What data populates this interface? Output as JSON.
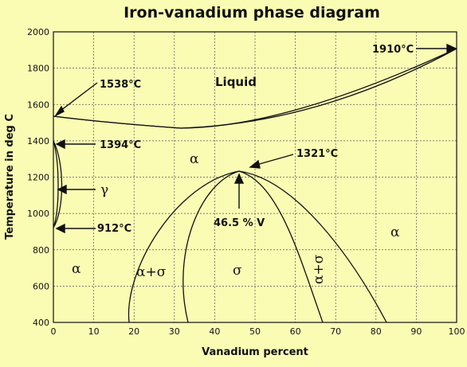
{
  "title": "Iron-vanadium phase diagram",
  "x_axis": {
    "label": "Vanadium percent",
    "min": 0,
    "max": 100,
    "ticks": [
      "0",
      "10",
      "20",
      "30",
      "40",
      "50",
      "60",
      "70",
      "80",
      "90",
      "100"
    ]
  },
  "y_axis": {
    "label": "Temperature in deg C",
    "min": 400,
    "max": 2000,
    "ticks": [
      "400",
      "600",
      "800",
      "1000",
      "1200",
      "1400",
      "1600",
      "1800",
      "2000"
    ]
  },
  "annotations": {
    "fe_melting": "1538°C",
    "v_melting": "1910°C",
    "gamma_alpha_upper": "1394°C",
    "gamma_alpha_lower": "912°C",
    "sigma_max": "1321°C",
    "sigma_composition": "46.5 % V"
  },
  "phases": {
    "liquid": "Liquid",
    "alpha_mid": "α",
    "gamma": "γ",
    "alpha_left": "α",
    "alpha_sigma_left": "α+σ",
    "sigma": "σ",
    "alpha_sigma_right": "α+σ",
    "alpha_right": "α"
  },
  "colors": {
    "background": "#fbfcb4",
    "line": "#111111",
    "grid": "#555555"
  }
}
